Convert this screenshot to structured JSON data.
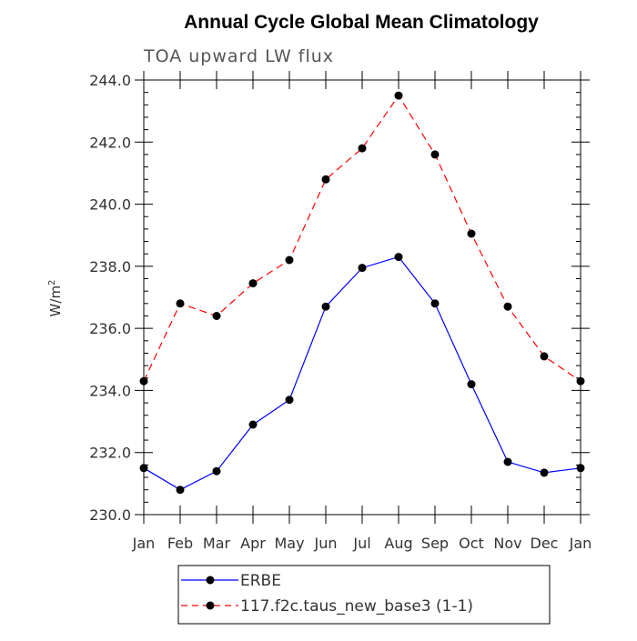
{
  "chart_data": {
    "type": "line",
    "title": "Annual Cycle Global Mean Climatology",
    "subtitle": "TOA upward LW flux",
    "ylabel": "W/m",
    "ylabel_superscript": "2",
    "xlabel": "",
    "categories": [
      "Jan",
      "Feb",
      "Mar",
      "Apr",
      "May",
      "Jun",
      "Jul",
      "Aug",
      "Sep",
      "Oct",
      "Nov",
      "Dec",
      "Jan"
    ],
    "ylim": [
      230.0,
      244.0
    ],
    "yticks": [
      "230.0",
      "232.0",
      "234.0",
      "236.0",
      "238.0",
      "240.0",
      "242.0",
      "244.0"
    ],
    "ytick_values": [
      230,
      232,
      234,
      236,
      238,
      240,
      242,
      244
    ],
    "grid": false,
    "legend_position": "bottom",
    "series": [
      {
        "name": "ERBE",
        "color": "#0000ff",
        "dash": "solid",
        "values": [
          231.5,
          230.8,
          231.4,
          232.9,
          233.7,
          236.7,
          237.95,
          238.3,
          236.8,
          234.2,
          231.7,
          231.35,
          231.5
        ]
      },
      {
        "name": "117.f2c.taus_new_base3 (1-1)",
        "color": "#ff0000",
        "dash": "dashed",
        "values": [
          234.3,
          236.8,
          236.4,
          237.45,
          238.2,
          240.8,
          241.8,
          243.5,
          241.6,
          239.05,
          236.7,
          235.1,
          234.3
        ]
      }
    ]
  }
}
